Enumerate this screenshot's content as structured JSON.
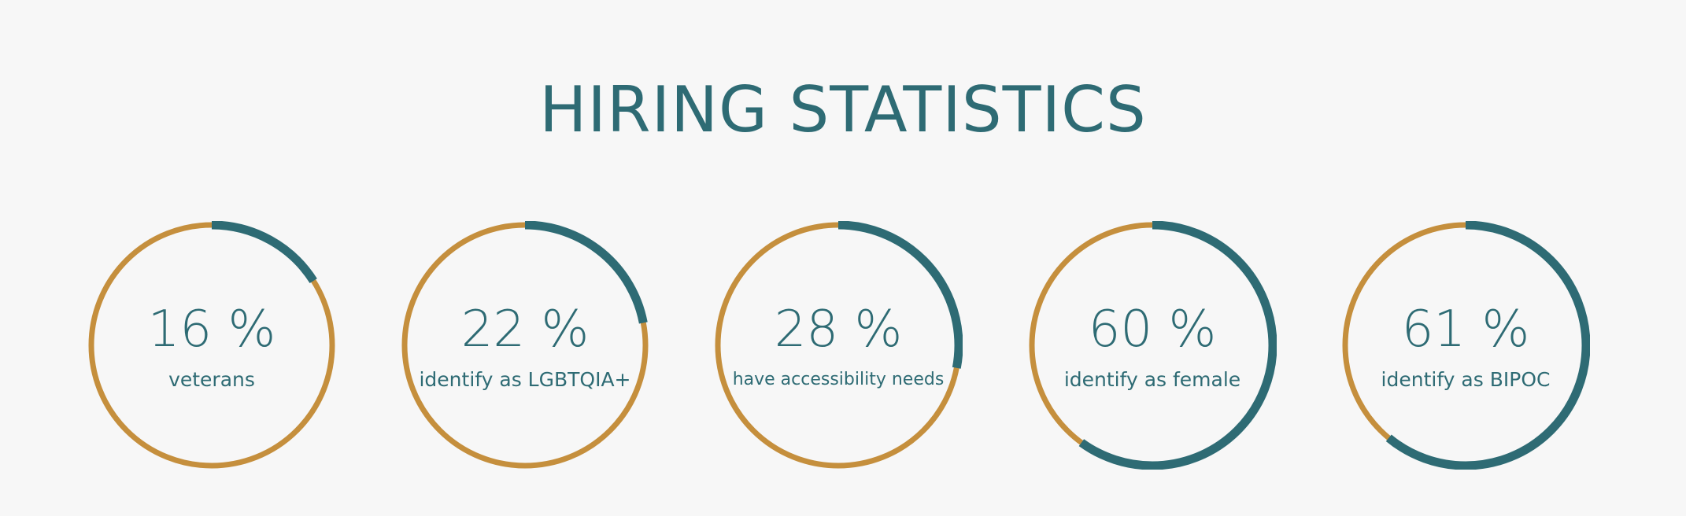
{
  "title": "HIRING STATISTICS",
  "colors": {
    "background": "#f7f7f7",
    "primary": "#2e6b74",
    "track": "#c58f3d"
  },
  "chart_data": [
    {
      "type": "pie",
      "value": 16,
      "display": "16 %",
      "label": "veterans"
    },
    {
      "type": "pie",
      "value": 22,
      "display": "22 %",
      "label": "identify as LGBTQIA+"
    },
    {
      "type": "pie",
      "value": 28,
      "display": "28 %",
      "label": "have accessibility needs"
    },
    {
      "type": "pie",
      "value": 60,
      "display": "60 %",
      "label": "identify as female"
    },
    {
      "type": "pie",
      "value": 61,
      "display": "61 %",
      "label": "identify as BIPOC"
    }
  ]
}
